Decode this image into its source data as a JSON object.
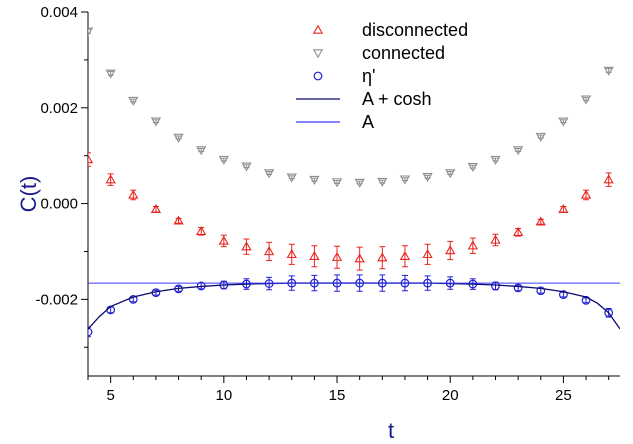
{
  "chart_data": {
    "type": "scatter",
    "title": "",
    "xlabel": "t",
    "ylabel": "C(t)",
    "xlim": [
      4,
      27.5
    ],
    "ylim": [
      -0.0036,
      0.004
    ],
    "xticks": [
      5,
      10,
      15,
      20,
      25
    ],
    "yticks": [
      -0.002,
      0.0,
      0.002,
      0.004
    ],
    "ytick_labels": [
      "-0.002",
      "0.000",
      "0.002",
      "0.004"
    ],
    "axis_color": "#000000",
    "title_color": "#1a1a8c",
    "grid": false,
    "legend_position": "top-center",
    "series": [
      {
        "name": "disconnected",
        "marker": "triangle-up",
        "color": "#e8231e",
        "x": [
          4,
          5,
          6,
          7,
          8,
          9,
          10,
          11,
          12,
          13,
          14,
          15,
          16,
          17,
          18,
          19,
          20,
          21,
          22,
          23,
          24,
          25,
          26,
          27
        ],
        "y": [
          0.00092,
          0.0005,
          0.00018,
          -0.00012,
          -0.00036,
          -0.00058,
          -0.00078,
          -0.0009,
          -0.001,
          -0.00106,
          -0.0011,
          -0.00112,
          -0.00115,
          -0.00113,
          -0.0011,
          -0.00106,
          -0.00098,
          -0.00088,
          -0.00076,
          -0.0006,
          -0.00038,
          -0.00012,
          0.00018,
          0.0005
        ],
        "err": [
          0.00014,
          0.00012,
          0.0001,
          6e-05,
          5e-05,
          8e-05,
          0.00012,
          0.00016,
          0.00019,
          0.00021,
          0.00022,
          0.00023,
          0.00024,
          0.00023,
          0.00022,
          0.00021,
          0.00019,
          0.00016,
          0.00012,
          8e-05,
          5e-05,
          6e-05,
          0.0001,
          0.00014
        ]
      },
      {
        "name": "connected",
        "marker": "triangle-down",
        "color": "#8c8c8c",
        "x": [
          4,
          5,
          6,
          7,
          8,
          9,
          10,
          11,
          12,
          13,
          14,
          15,
          16,
          17,
          18,
          19,
          20,
          21,
          22,
          23,
          24,
          25,
          26,
          27
        ],
        "y": [
          0.0036,
          0.00272,
          0.00215,
          0.00172,
          0.00138,
          0.00112,
          0.00092,
          0.00078,
          0.00064,
          0.00055,
          0.0005,
          0.00045,
          0.00044,
          0.00046,
          0.00051,
          0.00056,
          0.00064,
          0.00077,
          0.00092,
          0.00112,
          0.0014,
          0.00172,
          0.00218,
          0.00278
        ],
        "err": [
          4e-05,
          4e-05,
          3e-05,
          3e-05,
          3e-05,
          3e-05,
          3e-05,
          3e-05,
          3e-05,
          3e-05,
          3e-05,
          3e-05,
          3e-05,
          3e-05,
          3e-05,
          3e-05,
          3e-05,
          3e-05,
          3e-05,
          3e-05,
          3e-05,
          3e-05,
          3e-05,
          4e-05
        ]
      },
      {
        "name": "η'",
        "marker": "circle",
        "color": "#1f1fd4",
        "x": [
          4,
          5,
          6,
          7,
          8,
          9,
          10,
          11,
          12,
          13,
          14,
          15,
          16,
          17,
          18,
          19,
          20,
          21,
          22,
          23,
          24,
          25,
          26,
          27
        ],
        "y": [
          -0.00268,
          -0.00222,
          -0.002,
          -0.00186,
          -0.00178,
          -0.00172,
          -0.0017,
          -0.00168,
          -0.00167,
          -0.00166,
          -0.00166,
          -0.00166,
          -0.00166,
          -0.00166,
          -0.00166,
          -0.00166,
          -0.00166,
          -0.00168,
          -0.00172,
          -0.00176,
          -0.00182,
          -0.0019,
          -0.00202,
          -0.00228
        ],
        "err": [
          0.0001,
          6e-05,
          5e-05,
          5e-05,
          5e-05,
          6e-05,
          8e-05,
          0.00011,
          0.00013,
          0.00015,
          0.00016,
          0.00017,
          0.00017,
          0.00017,
          0.00016,
          0.00015,
          0.00013,
          0.00011,
          8e-05,
          6e-05,
          5e-05,
          5e-05,
          5e-05,
          9e-05
        ]
      },
      {
        "name": "A + cosh",
        "type": "line",
        "color": "#0b0b6e",
        "x": [
          3.5,
          4,
          4.5,
          5,
          6,
          7,
          8,
          9,
          10,
          11,
          12,
          13,
          14,
          15,
          16,
          17,
          18,
          19,
          20,
          21,
          22,
          23,
          24,
          25,
          26,
          26.5,
          27,
          27.5
        ],
        "y": [
          -0.0031,
          -0.00262,
          -0.00236,
          -0.00215,
          -0.00195,
          -0.00184,
          -0.00177,
          -0.00173,
          -0.0017,
          -0.00168,
          -0.00167,
          -0.00166,
          -0.00166,
          -0.00166,
          -0.00166,
          -0.00166,
          -0.00166,
          -0.00166,
          -0.00167,
          -0.00168,
          -0.0017,
          -0.00173,
          -0.00177,
          -0.00184,
          -0.00195,
          -0.00208,
          -0.00228,
          -0.00262
        ]
      },
      {
        "name": "A",
        "type": "hline",
        "color": "#3b3bff",
        "y": -0.00166
      }
    ]
  }
}
